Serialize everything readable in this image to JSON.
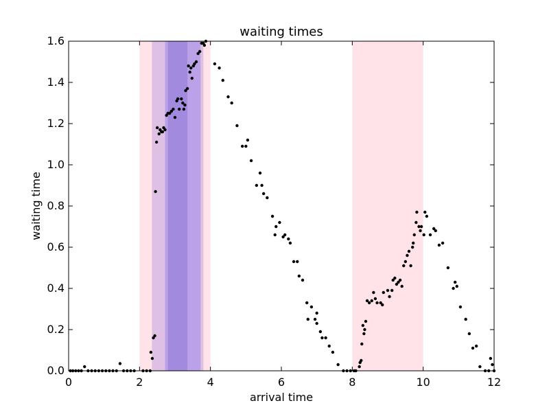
{
  "chart_data": {
    "type": "scatter",
    "title": "waiting times",
    "xlabel": "arrival time",
    "ylabel": "waiting time",
    "xlim": [
      0,
      12
    ],
    "ylim": [
      0,
      1.6
    ],
    "xticks": [
      "0",
      "2",
      "4",
      "6",
      "8",
      "10",
      "12"
    ],
    "yticks": [
      "0.0",
      "0.2",
      "0.4",
      "0.6",
      "0.8",
      "1.0",
      "1.2",
      "1.4",
      "1.6"
    ],
    "grid": false,
    "marker_color": "#000000",
    "shaded_bands": [
      {
        "x0": 2.0,
        "x1": 4.0,
        "color": "#ffc0cb",
        "opacity": 0.45
      },
      {
        "x0": 8.0,
        "x1": 10.0,
        "color": "#ffc0cb",
        "opacity": 0.45
      },
      {
        "x0": 2.35,
        "x1": 3.8,
        "color": "#9370db",
        "opacity": 0.3
      },
      {
        "x0": 2.72,
        "x1": 3.72,
        "color": "#7b68ee",
        "opacity": 0.35
      },
      {
        "x0": 2.8,
        "x1": 3.35,
        "color": "#6a5acd",
        "opacity": 0.3
      }
    ],
    "points": [
      [
        0.05,
        0.0
      ],
      [
        0.12,
        0.0
      ],
      [
        0.2,
        0.0
      ],
      [
        0.28,
        0.0
      ],
      [
        0.36,
        0.0
      ],
      [
        0.45,
        0.02
      ],
      [
        0.55,
        0.0
      ],
      [
        0.65,
        0.0
      ],
      [
        0.75,
        0.0
      ],
      [
        0.85,
        0.0
      ],
      [
        0.95,
        0.0
      ],
      [
        1.05,
        0.0
      ],
      [
        1.15,
        0.0
      ],
      [
        1.25,
        0.0
      ],
      [
        1.35,
        0.0
      ],
      [
        1.45,
        0.035
      ],
      [
        1.55,
        0.0
      ],
      [
        1.65,
        0.0
      ],
      [
        1.75,
        0.0
      ],
      [
        1.85,
        0.0
      ],
      [
        2.1,
        0.0
      ],
      [
        2.2,
        0.0
      ],
      [
        2.3,
        0.0
      ],
      [
        2.32,
        0.09
      ],
      [
        2.36,
        0.06
      ],
      [
        2.39,
        0.16
      ],
      [
        2.43,
        0.17
      ],
      [
        2.45,
        0.87
      ],
      [
        2.48,
        1.11
      ],
      [
        2.5,
        1.18
      ],
      [
        2.55,
        1.15
      ],
      [
        2.58,
        1.17
      ],
      [
        2.62,
        1.16
      ],
      [
        2.65,
        1.16
      ],
      [
        2.68,
        1.18
      ],
      [
        2.72,
        1.17
      ],
      [
        2.76,
        1.24
      ],
      [
        2.8,
        1.25
      ],
      [
        2.85,
        1.25
      ],
      [
        2.9,
        1.26
      ],
      [
        2.95,
        1.27
      ],
      [
        3.0,
        1.23
      ],
      [
        3.05,
        1.31
      ],
      [
        3.08,
        1.32
      ],
      [
        3.12,
        1.27
      ],
      [
        3.18,
        1.32
      ],
      [
        3.22,
        1.3
      ],
      [
        3.25,
        1.27
      ],
      [
        3.28,
        1.29
      ],
      [
        3.3,
        1.36
      ],
      [
        3.35,
        1.37
      ],
      [
        3.38,
        1.48
      ],
      [
        3.42,
        1.45
      ],
      [
        3.45,
        1.47
      ],
      [
        3.48,
        1.42
      ],
      [
        3.52,
        1.48
      ],
      [
        3.55,
        1.49
      ],
      [
        3.6,
        1.5
      ],
      [
        3.65,
        1.54
      ],
      [
        3.7,
        1.55
      ],
      [
        3.75,
        1.59
      ],
      [
        3.8,
        1.59
      ],
      [
        3.83,
        1.58
      ],
      [
        3.87,
        1.6
      ],
      [
        4.12,
        1.49
      ],
      [
        4.25,
        1.47
      ],
      [
        4.35,
        1.41
      ],
      [
        4.5,
        1.33
      ],
      [
        4.6,
        1.3
      ],
      [
        4.75,
        1.19
      ],
      [
        4.9,
        1.09
      ],
      [
        5.0,
        1.09
      ],
      [
        5.05,
        1.12
      ],
      [
        5.15,
        1.02
      ],
      [
        5.3,
        0.9
      ],
      [
        5.4,
        0.96
      ],
      [
        5.45,
        0.9
      ],
      [
        5.5,
        0.86
      ],
      [
        5.6,
        0.84
      ],
      [
        5.75,
        0.75
      ],
      [
        5.85,
        0.7
      ],
      [
        5.95,
        0.72
      ],
      [
        5.82,
        0.66
      ],
      [
        6.05,
        0.65
      ],
      [
        6.1,
        0.66
      ],
      [
        6.2,
        0.64
      ],
      [
        6.25,
        0.62
      ],
      [
        6.35,
        0.53
      ],
      [
        6.45,
        0.53
      ],
      [
        6.5,
        0.46
      ],
      [
        6.6,
        0.44
      ],
      [
        6.72,
        0.33
      ],
      [
        6.85,
        0.31
      ],
      [
        6.95,
        0.25
      ],
      [
        7.0,
        0.28
      ],
      [
        6.75,
        0.25
      ],
      [
        7.0,
        0.23
      ],
      [
        7.1,
        0.19
      ],
      [
        7.15,
        0.16
      ],
      [
        7.25,
        0.16
      ],
      [
        7.35,
        0.12
      ],
      [
        7.45,
        0.09
      ],
      [
        7.6,
        0.03
      ],
      [
        7.75,
        0.0
      ],
      [
        7.85,
        0.0
      ],
      [
        7.95,
        0.0
      ],
      [
        8.05,
        0.0
      ],
      [
        8.1,
        0.0
      ],
      [
        8.2,
        0.02
      ],
      [
        8.22,
        0.04
      ],
      [
        8.25,
        0.05
      ],
      [
        8.27,
        0.13
      ],
      [
        8.3,
        0.22
      ],
      [
        8.33,
        0.18
      ],
      [
        8.35,
        0.2
      ],
      [
        8.38,
        0.24
      ],
      [
        8.42,
        0.34
      ],
      [
        8.48,
        0.33
      ],
      [
        8.55,
        0.34
      ],
      [
        8.6,
        0.38
      ],
      [
        8.65,
        0.35
      ],
      [
        8.7,
        0.33
      ],
      [
        8.8,
        0.33
      ],
      [
        8.85,
        0.32
      ],
      [
        8.88,
        0.38
      ],
      [
        9.0,
        0.39
      ],
      [
        9.05,
        0.36
      ],
      [
        9.12,
        0.39
      ],
      [
        9.15,
        0.44
      ],
      [
        9.2,
        0.45
      ],
      [
        9.25,
        0.42
      ],
      [
        9.3,
        0.43
      ],
      [
        9.35,
        0.44
      ],
      [
        9.4,
        0.41
      ],
      [
        9.45,
        0.51
      ],
      [
        9.5,
        0.53
      ],
      [
        9.55,
        0.56
      ],
      [
        9.6,
        0.58
      ],
      [
        9.65,
        0.51
      ],
      [
        9.7,
        0.6
      ],
      [
        9.72,
        0.62
      ],
      [
        9.75,
        0.66
      ],
      [
        9.8,
        0.72
      ],
      [
        9.82,
        0.77
      ],
      [
        9.88,
        0.7
      ],
      [
        9.92,
        0.68
      ],
      [
        9.95,
        0.7
      ],
      [
        10.02,
        0.66
      ],
      [
        10.05,
        0.77
      ],
      [
        10.1,
        0.75
      ],
      [
        10.2,
        0.66
      ],
      [
        10.3,
        0.69
      ],
      [
        10.35,
        0.68
      ],
      [
        10.45,
        0.61
      ],
      [
        10.55,
        0.62
      ],
      [
        10.7,
        0.5
      ],
      [
        10.85,
        0.4
      ],
      [
        10.9,
        0.43
      ],
      [
        10.95,
        0.41
      ],
      [
        11.05,
        0.31
      ],
      [
        11.2,
        0.25
      ],
      [
        11.3,
        0.18
      ],
      [
        11.4,
        0.11
      ],
      [
        11.5,
        0.12
      ],
      [
        11.6,
        0.02
      ],
      [
        11.75,
        0.0
      ],
      [
        11.85,
        0.0
      ],
      [
        11.9,
        0.06
      ],
      [
        11.95,
        0.03
      ],
      [
        12.0,
        0.0
      ]
    ]
  }
}
